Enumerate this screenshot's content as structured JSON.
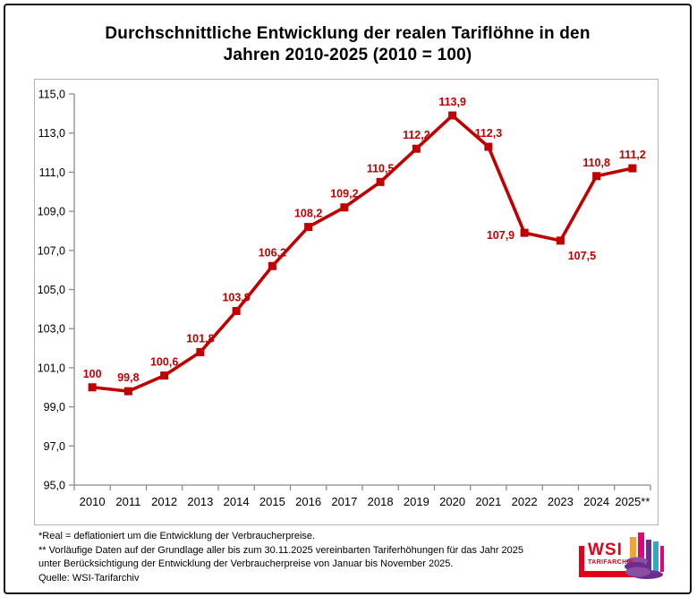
{
  "title": {
    "line1": "Durchschnittliche Entwicklung der realen Tariflöhne in den",
    "line2": "Jahren 2010-2025 (2010 = 100)"
  },
  "chart_data": {
    "type": "line",
    "title": "Durchschnittliche Entwicklung der realen Tariflöhne in den Jahren 2010-2025 (2010 = 100)",
    "categories": [
      "2010",
      "2011",
      "2012",
      "2013",
      "2014",
      "2015",
      "2016",
      "2017",
      "2018",
      "2019",
      "2020",
      "2021",
      "2022",
      "2023",
      "2024",
      "2025**"
    ],
    "values": [
      100,
      99.8,
      100.6,
      101.8,
      103.9,
      106.2,
      108.2,
      109.2,
      110.5,
      112.2,
      113.9,
      112.3,
      107.9,
      107.5,
      110.8,
      111.2
    ],
    "point_labels": [
      "100",
      "99,8",
      "100,6",
      "101,8",
      "103,9",
      "106,2",
      "108,2",
      "109,2",
      "110,5",
      "112,2",
      "113,9",
      "112,3",
      "107,9",
      "107,5",
      "110,8",
      "111,2"
    ],
    "xlabel": "",
    "ylabel": "",
    "ylim": [
      95,
      115
    ],
    "ytick_step": 2,
    "ytick_labels": [
      "95,0",
      "97,0",
      "99,0",
      "101,0",
      "103,0",
      "105,0",
      "107,0",
      "109,0",
      "111,0",
      "113,0",
      "115,0"
    ],
    "grid": false,
    "legend": null,
    "marker": "square",
    "line_color": "#c00000",
    "label_color": "#c00000",
    "axis_color": "#8c8c8c"
  },
  "footnotes": {
    "lines": [
      "*Real = deflationiert um die Entwicklung der Verbraucherpreise.",
      "** Vorläufige Daten auf der Grundlage aller bis zum 30.11.2025 vereinbarten Tariferhöhungen für das Jahr 2025",
      "unter Berücksichtigung der Entwicklung der Verbraucherpreise von Januar bis November 2025.",
      "Quelle: WSI-Tarifarchiv"
    ]
  },
  "logo": {
    "name": "WSI",
    "sub": "TARIFARCHIV"
  },
  "colors": {
    "logo_red": "#e2001a",
    "logo_orange": "#f2a33c",
    "logo_magenta": "#e5007d",
    "logo_purple": "#6e2c91",
    "logo_purple_light": "#8a4ea3",
    "logo_teal": "#31a8c4"
  }
}
